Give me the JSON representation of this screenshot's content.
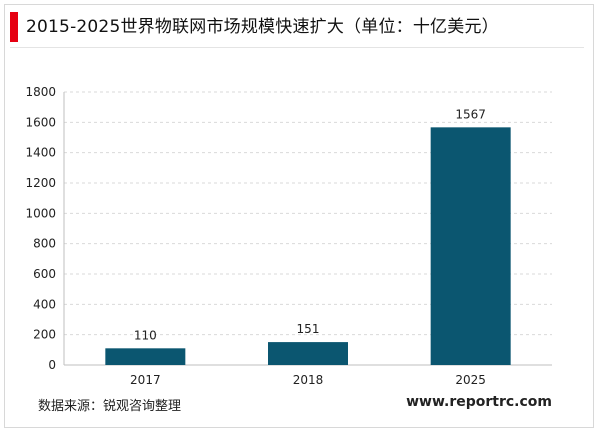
{
  "header": {
    "title": "2015-2025世界物联网市场规模快速扩大（单位：十亿美元）"
  },
  "footer": {
    "source": "数据来源：锐观咨询整理",
    "website": "www.reportrc.com"
  },
  "colors": {
    "accent_bar": "#e60012",
    "bar_fill": "#0b5670",
    "grid": "#d9d9d9"
  },
  "chart_data": {
    "type": "bar",
    "title": "2015-2025世界物联网市场规模快速扩大（单位：十亿美元）",
    "categories": [
      "2017",
      "2018",
      "2025"
    ],
    "values": [
      110,
      151,
      1567
    ],
    "data_labels": [
      "110",
      "151",
      "1567"
    ],
    "xlabel": "",
    "ylabel": "",
    "ylim": [
      0,
      1800
    ],
    "yticks": [
      0,
      200,
      400,
      600,
      800,
      1000,
      1200,
      1400,
      1600,
      1800
    ],
    "grid": true,
    "legend": "none"
  }
}
